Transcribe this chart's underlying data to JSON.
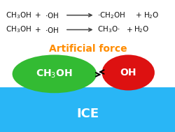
{
  "bg_color": "#ffffff",
  "ice_color": "#29b6f6",
  "ice_label": "ICE",
  "ice_label_color": "#ffffff",
  "ice_label_fontsize": 13,
  "artificial_force_text": "Artificial force",
  "artificial_force_color": "#ff8c00",
  "artificial_force_fontsize": 10,
  "ch3oh_ellipse_color": "#33bb33",
  "oh_ellipse_color": "#dd1111",
  "ellipse_label_color": "#ffffff",
  "ellipse_label_fontsize": 10,
  "reaction_fontsize": 7.5,
  "reaction_color": "#111111",
  "arrow_color": "#555555"
}
